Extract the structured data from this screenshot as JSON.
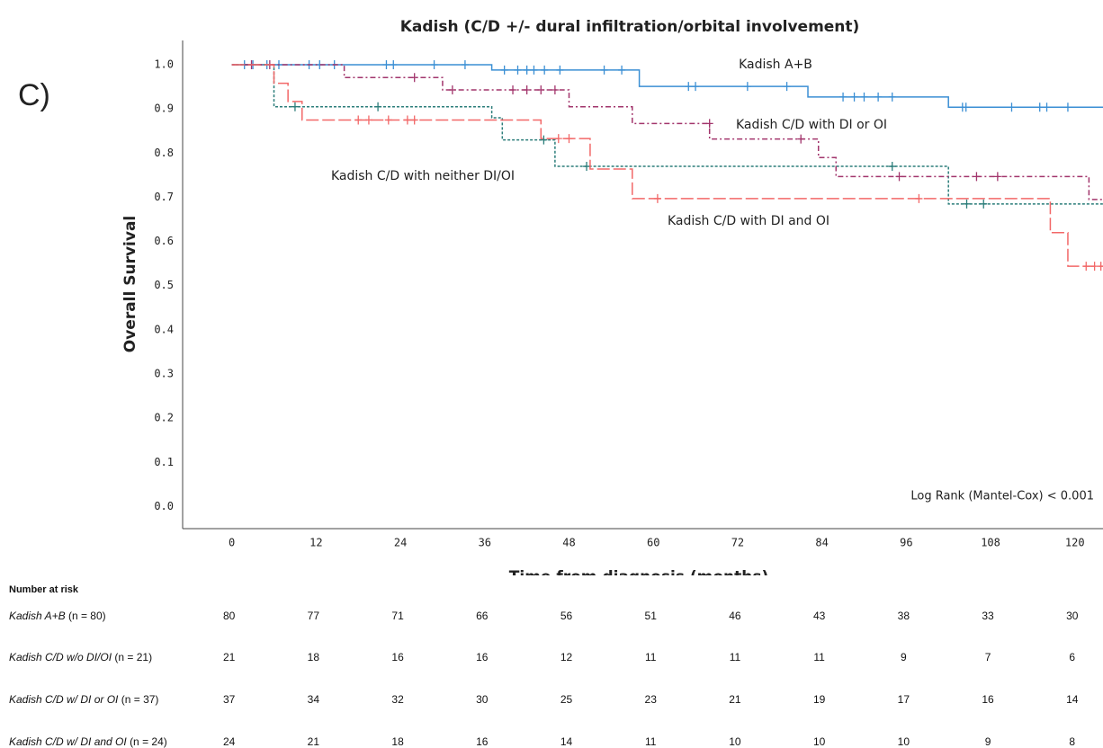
{
  "panel_label": "C)",
  "chart_data": {
    "type": "step",
    "title": "Kadish (C/D +/- dural infiltration/orbital involvement)",
    "x_label": "Time from diagnosis (months)",
    "y_label": "Overall Survival",
    "note": "Log Rank (Mantel-Cox) < 0.001",
    "xlim": [
      -7,
      124
    ],
    "ylim": [
      -0.05,
      1.055
    ],
    "xticks": [
      0,
      12,
      24,
      36,
      48,
      60,
      72,
      84,
      96,
      108,
      120
    ],
    "yticks": [
      {
        "value": 0,
        "label": "0.0"
      },
      0.1,
      0.2,
      0.3,
      0.4,
      0.5,
      0.6,
      0.7,
      0.8,
      0.9,
      {
        "value": 1,
        "label": "1.0"
      }
    ],
    "series": [
      {
        "name": "Kadish A+B",
        "color": "#3b8fd4",
        "dash": "none",
        "x": [
          0,
          37,
          58,
          82,
          102,
          124
        ],
        "values": [
          1.0,
          0.988,
          0.951,
          0.927,
          0.904,
          0.904
        ],
        "censor_x": [
          1.8,
          3,
          5,
          6.7,
          11,
          12.5,
          14.6,
          22,
          23,
          28.8,
          33.2,
          38.8,
          40.7,
          42,
          43,
          44.5,
          46.7,
          53,
          55.5,
          65,
          66,
          73.4,
          79,
          87,
          88.6,
          90,
          92,
          94,
          104,
          104.5,
          111,
          115,
          116,
          119
        ],
        "censor_values": [
          1,
          1,
          1,
          1,
          1,
          1,
          1,
          1,
          1,
          1,
          1,
          0.988,
          0.988,
          0.988,
          0.988,
          0.988,
          0.988,
          0.988,
          0.988,
          0.951,
          0.951,
          0.951,
          0.951,
          0.927,
          0.927,
          0.927,
          0.927,
          0.927,
          0.904,
          0.904,
          0.904,
          0.904,
          0.904,
          0.904
        ]
      },
      {
        "name": "Kadish C/D with neither DI/OI",
        "color": "#2b7d7a",
        "dash": "3 2",
        "x": [
          0,
          6,
          37,
          38.5,
          46,
          102,
          124
        ],
        "values": [
          1.0,
          0.905,
          0.88,
          0.83,
          0.77,
          0.685,
          0.685
        ],
        "censor_x": [
          9,
          20.8,
          44.4,
          50.5,
          94,
          104.6,
          107
        ],
        "censor_values": [
          0.905,
          0.905,
          0.83,
          0.77,
          0.77,
          0.685,
          0.685
        ]
      },
      {
        "name": "Kadish C/D with DI or OI",
        "color": "#a2356c",
        "dash": "6 3 2 3",
        "x": [
          0,
          16,
          30,
          48,
          57,
          68,
          83.5,
          86,
          122,
          124
        ],
        "values": [
          1.0,
          0.971,
          0.943,
          0.905,
          0.867,
          0.832,
          0.79,
          0.747,
          0.695,
          0.695
        ],
        "censor_x": [
          2.8,
          5.4,
          26,
          31.4,
          40,
          42,
          44,
          46,
          68,
          81,
          95,
          106,
          109
        ],
        "censor_values": [
          1,
          1,
          0.971,
          0.943,
          0.943,
          0.943,
          0.943,
          0.943,
          0.867,
          0.832,
          0.747,
          0.747,
          0.747
        ]
      },
      {
        "name": "Kadish C/D with DI and OI",
        "color": "#f26868",
        "dash": "14 4",
        "x": [
          0,
          6,
          8,
          10,
          44,
          51,
          57,
          116.5,
          119,
          124
        ],
        "values": [
          1.0,
          0.958,
          0.917,
          0.875,
          0.833,
          0.764,
          0.697,
          0.62,
          0.544,
          0.544
        ],
        "censor_x": [
          18,
          19.5,
          22.3,
          25,
          26,
          46.5,
          48,
          60.6,
          97.8,
          121.6,
          122.8,
          123.7
        ],
        "censor_values": [
          0.875,
          0.875,
          0.875,
          0.875,
          0.875,
          0.833,
          0.833,
          0.697,
          0.697,
          0.544,
          0.544,
          0.544
        ]
      }
    ]
  },
  "risk_table": {
    "title": "Number at risk",
    "rows": [
      {
        "name": "Kadish A+B",
        "n": "(n = 80)",
        "counts": [
          80,
          77,
          71,
          66,
          56,
          51,
          46,
          43,
          38,
          33,
          30
        ]
      },
      {
        "name": "Kadish C/D w/o DI/OI",
        "n": "(n = 21)",
        "counts": [
          21,
          18,
          16,
          16,
          12,
          11,
          11,
          11,
          9,
          7,
          6
        ]
      },
      {
        "name": "Kadish C/D w/ DI or OI",
        "n": "(n = 37)",
        "counts": [
          37,
          34,
          32,
          30,
          25,
          23,
          21,
          19,
          17,
          16,
          14
        ]
      },
      {
        "name": "Kadish C/D w/ DI and OI",
        "n": "(n = 24)",
        "counts": [
          24,
          21,
          18,
          16,
          14,
          11,
          10,
          10,
          10,
          9,
          8
        ]
      }
    ]
  }
}
